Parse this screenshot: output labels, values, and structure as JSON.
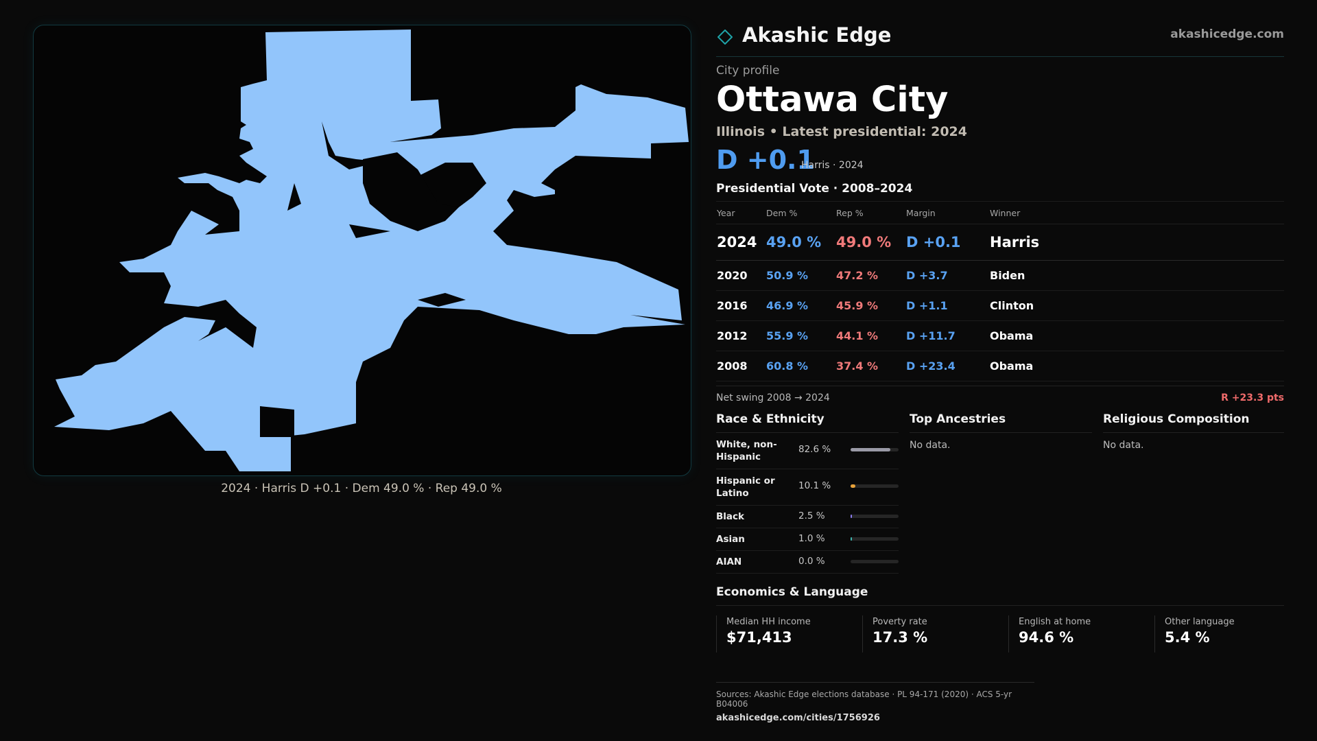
{
  "brand": {
    "name": "Akashic Edge",
    "url": "akashicedge.com",
    "accent": "#1fa3a8"
  },
  "profile": {
    "eyebrow": "City profile",
    "title": "Ottawa City",
    "subtitle": "Illinois • Latest presidential: 2024",
    "margin_big": "D +0.1",
    "margin_note": "Harris · 2024"
  },
  "map": {
    "caption": "2024 · Harris D +0.1 · Dem 49.0 % · Rep 49.0 %",
    "fill_color": "#92c5fb"
  },
  "votes": {
    "title": "Presidential Vote · 2008–2024",
    "headers": [
      "Year",
      "Dem %",
      "Rep %",
      "Margin",
      "Winner"
    ],
    "rows": [
      {
        "year": "2024",
        "dem": "49.0 %",
        "rep": "49.0 %",
        "margin": "D +0.1",
        "winner": "Harris"
      },
      {
        "year": "2020",
        "dem": "50.9 %",
        "rep": "47.2 %",
        "margin": "D +3.7",
        "winner": "Biden"
      },
      {
        "year": "2016",
        "dem": "46.9 %",
        "rep": "45.9 %",
        "margin": "D +1.1",
        "winner": "Clinton"
      },
      {
        "year": "2012",
        "dem": "55.9 %",
        "rep": "44.1 %",
        "margin": "D +11.7",
        "winner": "Obama"
      },
      {
        "year": "2008",
        "dem": "60.8 %",
        "rep": "37.4 %",
        "margin": "D +23.4",
        "winner": "Obama"
      }
    ],
    "swing_label": "Net swing 2008 → 2024",
    "swing_value": "R +23.3 pts"
  },
  "race": {
    "title": "Race & Ethnicity",
    "rows": [
      {
        "label": "White, non-Hispanic",
        "pct": "82.6 %",
        "share": 0.826,
        "color": "#9a9aa6"
      },
      {
        "label": "Hispanic or Latino",
        "pct": "10.1 %",
        "share": 0.101,
        "color": "#e8a23a"
      },
      {
        "label": "Black",
        "pct": "2.5 %",
        "share": 0.025,
        "color": "#8b7cf0"
      },
      {
        "label": "Asian",
        "pct": "1.0 %",
        "share": 0.01,
        "color": "#3fb6b0"
      },
      {
        "label": "AIAN",
        "pct": "0.0 %",
        "share": 0.0,
        "color": "#777777"
      }
    ]
  },
  "ancestries": {
    "title": "Top Ancestries",
    "empty": "No data."
  },
  "religion": {
    "title": "Religious Composition",
    "empty": "No data."
  },
  "economics": {
    "title": "Economics & Language",
    "cells": [
      {
        "label": "Median HH income",
        "value": "$71,413"
      },
      {
        "label": "Poverty rate",
        "value": "17.3 %"
      },
      {
        "label": "English at home",
        "value": "94.6 %"
      },
      {
        "label": "Other language",
        "value": "5.4 %"
      }
    ]
  },
  "footer": {
    "sources": "Sources: Akashic Edge elections database · PL 94-171 (2020) · ACS 5-yr B04006",
    "url": "akashicedge.com/cities/1756926"
  }
}
